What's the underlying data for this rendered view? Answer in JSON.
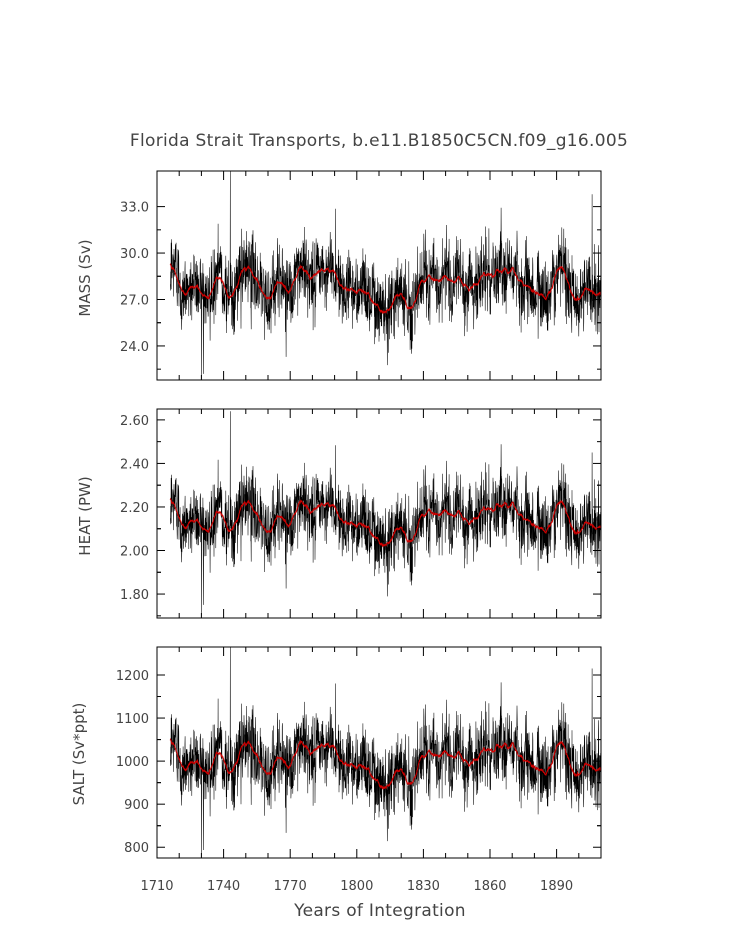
{
  "figure": {
    "title": "Florida Strait Transports, b.e11.B1850C5CN.f09_g16.005",
    "xlabel": "Years of Integration",
    "xticks": [
      "1710",
      "1740",
      "1770",
      "1800",
      "1830",
      "1860",
      "1890"
    ]
  },
  "chart_data": [
    {
      "type": "line",
      "panel": "mass",
      "ylabel": "MASS (Sv)",
      "yticks": [
        "24.0",
        "27.0",
        "30.0",
        "33.0"
      ],
      "xlim": [
        1710,
        1910
      ],
      "ylim": [
        21.8,
        35.3
      ],
      "x_range": [
        1716,
        1910
      ],
      "monthly_mean": 28.3,
      "monthly_std": 1.6,
      "smoothed_range": [
        26.5,
        30.3
      ],
      "extremes": [
        {
          "x": 1743,
          "y": 35.3
        },
        {
          "x": 1730,
          "y": 21.9
        },
        {
          "x": 1906,
          "y": 33.8
        }
      ],
      "series": [
        {
          "color": "#000000",
          "values": []
        },
        {
          "color": "#cc0000",
          "values": []
        }
      ]
    },
    {
      "type": "line",
      "panel": "heat",
      "ylabel": "HEAT (PW)",
      "yticks": [
        "1.80",
        "2.00",
        "2.20",
        "2.40",
        "2.60"
      ],
      "xlim": [
        1710,
        1910
      ],
      "ylim": [
        1.69,
        2.65
      ],
      "x_range": [
        1716,
        1910
      ],
      "monthly_mean": 2.17,
      "monthly_std": 0.11,
      "smoothed_range": [
        2.05,
        2.3
      ],
      "extremes": [
        {
          "x": 1743,
          "y": 2.64
        },
        {
          "x": 1730,
          "y": 1.7
        },
        {
          "x": 1906,
          "y": 2.45
        }
      ],
      "series": [
        {
          "color": "#000000",
          "values": []
        },
        {
          "color": "#cc0000",
          "values": []
        }
      ]
    },
    {
      "type": "line",
      "panel": "salt",
      "ylabel": "SALT (Sv*ppt)",
      "yticks": [
        "800",
        "900",
        "1000",
        "1100",
        "1200"
      ],
      "xlim": [
        1710,
        1910
      ],
      "ylim": [
        775,
        1265
      ],
      "x_range": [
        1716,
        1910
      ],
      "monthly_mean": 1015,
      "monthly_std": 58,
      "smoothed_range": [
        950,
        1080
      ],
      "extremes": [
        {
          "x": 1743,
          "y": 1265
        },
        {
          "x": 1730,
          "y": 778
        },
        {
          "x": 1906,
          "y": 1215
        }
      ],
      "series": [
        {
          "color": "#000000",
          "values": []
        },
        {
          "color": "#cc0000",
          "values": []
        }
      ]
    }
  ]
}
